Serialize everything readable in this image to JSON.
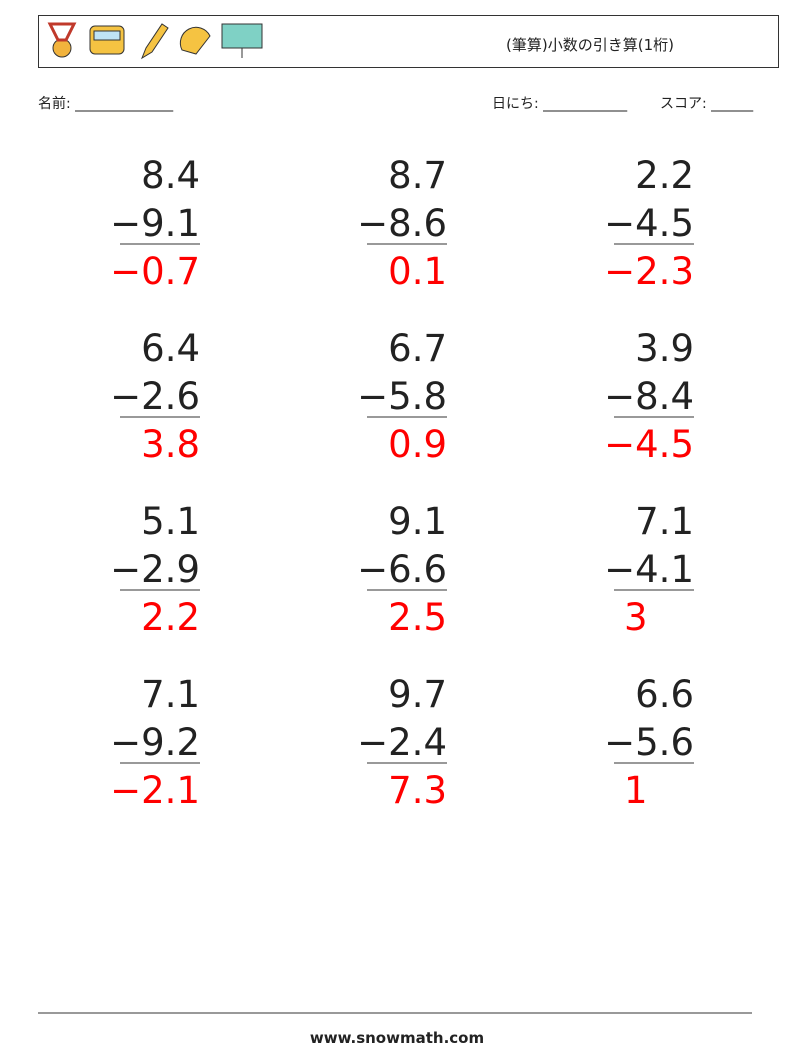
{
  "header": {
    "title": "(筆算)小数の引き算(1桁)"
  },
  "fields": {
    "name": "名前: ______________",
    "date": "日にち: ____________",
    "score": "スコア: ______"
  },
  "problems": [
    {
      "top": "8.4",
      "bottom": "−9.1",
      "answer": "−0.7"
    },
    {
      "top": "8.7",
      "bottom": "−8.6",
      "answer": "0.1"
    },
    {
      "top": "2.2",
      "bottom": "−4.5",
      "answer": "−2.3"
    },
    {
      "top": "6.4",
      "bottom": "−2.6",
      "answer": "3.8"
    },
    {
      "top": "6.7",
      "bottom": "−5.8",
      "answer": "0.9"
    },
    {
      "top": "3.9",
      "bottom": "−8.4",
      "answer": "−4.5"
    },
    {
      "top": "5.1",
      "bottom": "−2.9",
      "answer": "2.2"
    },
    {
      "top": "9.1",
      "bottom": "−6.6",
      "answer": "2.5"
    },
    {
      "top": "7.1",
      "bottom": "−4.1",
      "answer": "3"
    },
    {
      "top": "7.1",
      "bottom": "−9.2",
      "answer": "−2.1"
    },
    {
      "top": "9.7",
      "bottom": "−2.4",
      "answer": "7.3"
    },
    {
      "top": "6.6",
      "bottom": "−5.6",
      "answer": "1"
    }
  ],
  "footer": {
    "site": "www.snowmath.com"
  }
}
